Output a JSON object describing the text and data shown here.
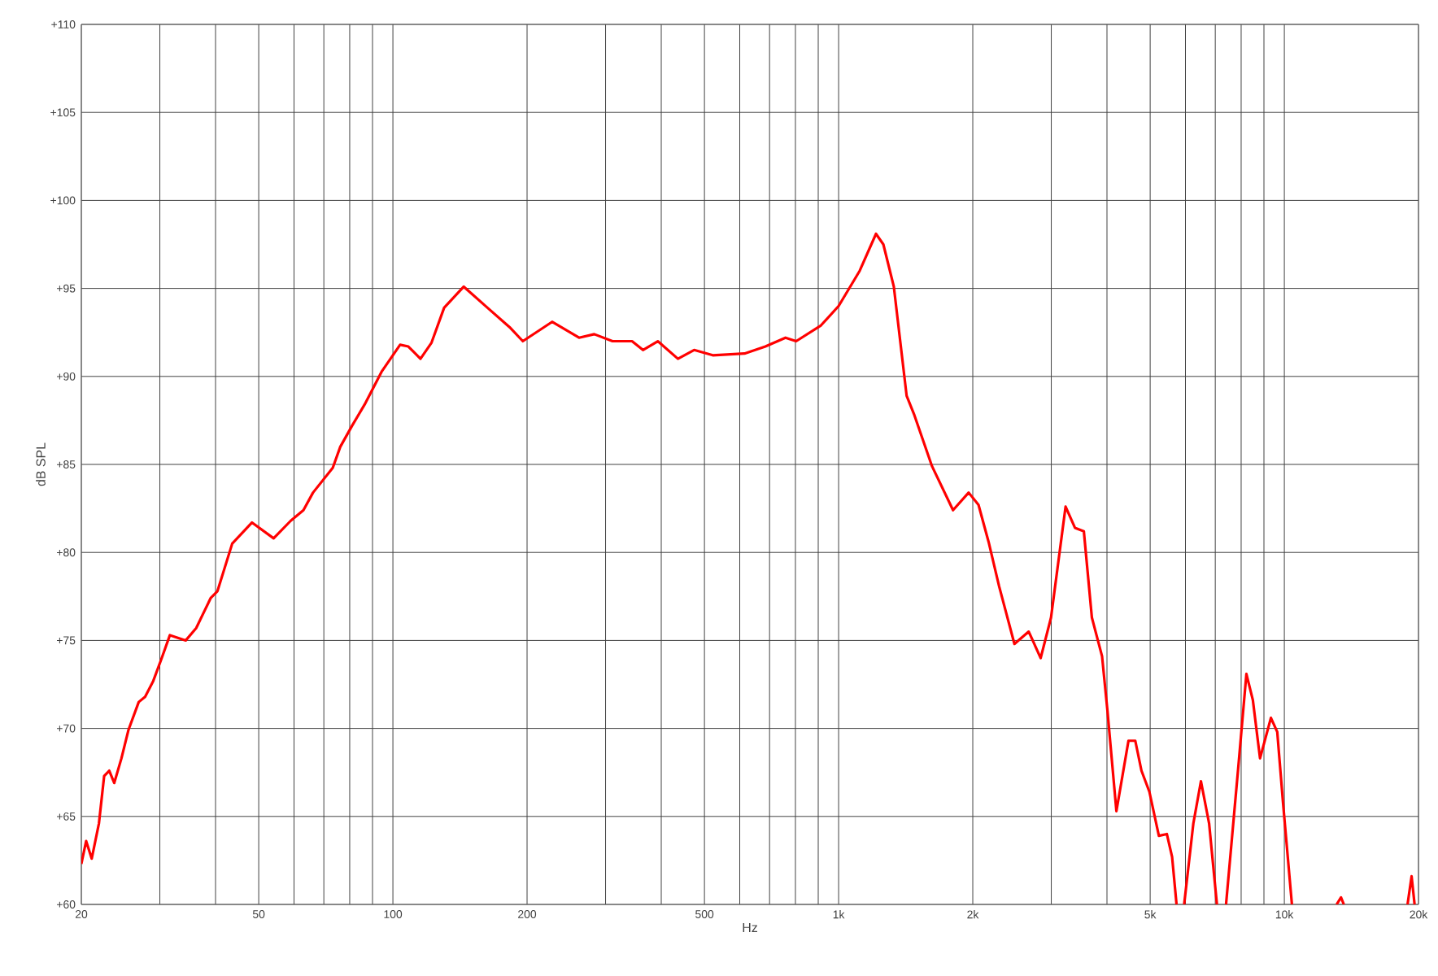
{
  "chart_data": {
    "type": "line",
    "xlabel": "Hz",
    "ylabel": "dB SPL",
    "log": "x",
    "grid": true,
    "marker": "none",
    "line_style": "solid",
    "xlim": [
      20,
      20000
    ],
    "ylim": [
      60,
      110
    ],
    "xticks": [
      {
        "value": 20,
        "label": "20"
      },
      {
        "value": 30,
        "label": null
      },
      {
        "value": 40,
        "label": null
      },
      {
        "value": 50,
        "label": "50"
      },
      {
        "value": 60,
        "label": null
      },
      {
        "value": 70,
        "label": null
      },
      {
        "value": 80,
        "label": null
      },
      {
        "value": 90,
        "label": null
      },
      {
        "value": 100,
        "label": "100"
      },
      {
        "value": 200,
        "label": "200"
      },
      {
        "value": 300,
        "label": null
      },
      {
        "value": 400,
        "label": null
      },
      {
        "value": 500,
        "label": "500"
      },
      {
        "value": 600,
        "label": null
      },
      {
        "value": 700,
        "label": null
      },
      {
        "value": 800,
        "label": null
      },
      {
        "value": 900,
        "label": null
      },
      {
        "value": 1000,
        "label": "1k"
      },
      {
        "value": 2000,
        "label": "2k"
      },
      {
        "value": 3000,
        "label": null
      },
      {
        "value": 4000,
        "label": null
      },
      {
        "value": 5000,
        "label": "5k"
      },
      {
        "value": 6000,
        "label": null
      },
      {
        "value": 7000,
        "label": null
      },
      {
        "value": 8000,
        "label": null
      },
      {
        "value": 9000,
        "label": null
      },
      {
        "value": 10000,
        "label": "10k"
      },
      {
        "value": 20000,
        "label": "20k"
      }
    ],
    "yticks": [
      {
        "value": 60,
        "label": "+60"
      },
      {
        "value": 65,
        "label": "+65"
      },
      {
        "value": 70,
        "label": "+70"
      },
      {
        "value": 75,
        "label": "+75"
      },
      {
        "value": 80,
        "label": "+80"
      },
      {
        "value": 85,
        "label": "+85"
      },
      {
        "value": 90,
        "label": "+90"
      },
      {
        "value": 95,
        "label": "+95"
      },
      {
        "value": 100,
        "label": "+100"
      },
      {
        "value": 105,
        "label": "+105"
      },
      {
        "value": 110,
        "label": "+110"
      }
    ],
    "series": [
      {
        "color": "#ff0000",
        "x": [
          20,
          20.5,
          21.1,
          21.9,
          22.5,
          23.1,
          23.7,
          24.6,
          25.5,
          26.9,
          27.8,
          29,
          30.3,
          31.6,
          34.3,
          36.2,
          39,
          40.4,
          43.6,
          48.3,
          54,
          59,
          63,
          66.2,
          73.3,
          76.2,
          81,
          86.4,
          94.5,
          103.8,
          108.3,
          115.3,
          122,
          130.3,
          144.2,
          163,
          182.7,
          195.7,
          227.6,
          261.6,
          283,
          311,
          344,
          364,
          393,
          436,
          474,
          522,
          615,
          685,
          760,
          803,
          913,
          1000,
          1115,
          1213,
          1260,
          1330,
          1421,
          1479,
          1620,
          1806,
          1958,
          2060,
          2170,
          2290,
          2480,
          2670,
          2840,
          2996,
          3230,
          3390,
          3550,
          3700,
          3900,
          4010,
          4200,
          4470,
          4630,
          4780,
          4980,
          5230,
          5450,
          5600,
          5730,
          5850,
          5960,
          6250,
          6500,
          6780,
          7060,
          7200,
          7400,
          7890,
          8220,
          8500,
          8820,
          9330,
          9640,
          9930,
          10400,
          11500,
          13100,
          13400,
          13600,
          16000,
          18900,
          19300,
          19600
        ],
        "values": [
          62.3,
          63.6,
          62.6,
          64.6,
          67.3,
          67.6,
          66.9,
          68.3,
          69.9,
          71.5,
          71.8,
          72.7,
          74.0,
          75.3,
          75.0,
          75.7,
          77.4,
          77.8,
          80.5,
          81.7,
          80.8,
          81.8,
          82.4,
          83.4,
          84.8,
          86.0,
          87.2,
          88.4,
          90.3,
          91.8,
          91.7,
          91.0,
          91.9,
          93.9,
          95.1,
          93.9,
          92.8,
          92.0,
          93.1,
          92.2,
          92.4,
          92.0,
          92.0,
          91.5,
          92.0,
          91.0,
          91.5,
          91.2,
          91.3,
          91.7,
          92.2,
          92.0,
          92.9,
          94.0,
          96.0,
          98.1,
          97.5,
          95.1,
          88.9,
          87.8,
          84.9,
          82.4,
          83.4,
          82.7,
          80.6,
          78.1,
          74.8,
          75.5,
          74.0,
          76.3,
          82.6,
          81.4,
          81.2,
          76.3,
          74.1,
          71.0,
          65.3,
          69.3,
          69.3,
          67.6,
          66.4,
          63.9,
          64.0,
          62.7,
          60.0,
          null,
          60.0,
          64.6,
          67.0,
          64.6,
          60.0,
          null,
          60.0,
          67.9,
          73.1,
          71.6,
          68.3,
          70.6,
          69.8,
          65.8,
          60.0,
          null,
          60.0,
          60.4,
          60.0,
          null,
          60.0,
          61.6,
          60.0
        ]
      }
    ]
  }
}
